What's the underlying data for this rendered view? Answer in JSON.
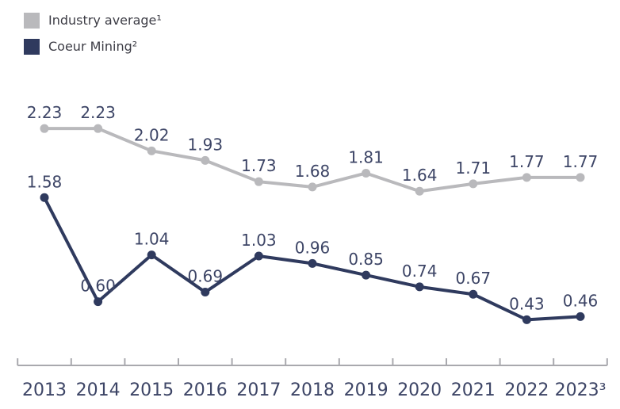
{
  "legend": {
    "items": [
      {
        "label": "Industry average¹",
        "color": "#b9b9bc"
      },
      {
        "label": "Coeur Mining²",
        "color": "#2f3a5e"
      }
    ]
  },
  "chart_data": {
    "type": "line",
    "title": "",
    "categories": [
      "2013",
      "2014",
      "2015",
      "2016",
      "2017",
      "2018",
      "2019",
      "2020",
      "2021",
      "2022",
      "2023³"
    ],
    "series": [
      {
        "id": "industry-average",
        "name": "Industry average¹",
        "color": "#b9b9bc",
        "values": [
          2.23,
          2.23,
          2.02,
          1.93,
          1.73,
          1.68,
          1.81,
          1.64,
          1.71,
          1.77,
          1.77
        ]
      },
      {
        "id": "coeur-mining",
        "name": "Coeur Mining²",
        "color": "#2f3a5e",
        "values": [
          1.58,
          0.6,
          1.04,
          0.69,
          1.03,
          0.96,
          0.85,
          0.74,
          0.67,
          0.43,
          0.46
        ]
      }
    ],
    "value_labels": true,
    "value_label_decimals": 2,
    "xlabel": "",
    "ylabel": "",
    "ylim": [
      0,
      2.4
    ],
    "grid": false,
    "legend_position": "top-left",
    "axis_color": "#a9a9ae",
    "label_color": "#3d4566"
  }
}
